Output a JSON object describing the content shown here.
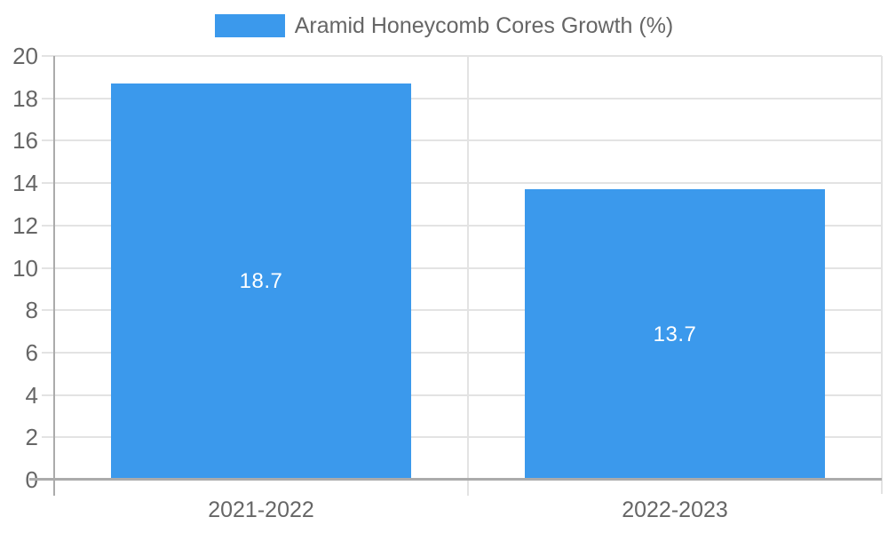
{
  "chart_data": {
    "type": "bar",
    "title": "",
    "legend": "Aramid Honeycomb Cores Growth (%)",
    "legend_position": "top",
    "categories": [
      "2021-2022",
      "2022-2023"
    ],
    "series": [
      {
        "name": "Aramid Honeycomb Cores Growth (%)",
        "values": [
          18.7,
          13.7
        ]
      }
    ],
    "value_labels": [
      "18.7",
      "13.7"
    ],
    "ylim": [
      0,
      20
    ],
    "ytick_step": 2,
    "yticks": [
      0,
      2,
      4,
      6,
      8,
      10,
      12,
      14,
      16,
      18,
      20
    ],
    "xlabel": "",
    "ylabel": "",
    "grid": true
  },
  "colors": {
    "bar": "#3B99EC",
    "grid": "#E3E3E3",
    "axis": "#ABABAB",
    "tick_text": "#666666",
    "value_label_text": "#FFFFFF",
    "background": "#FFFFFF"
  }
}
